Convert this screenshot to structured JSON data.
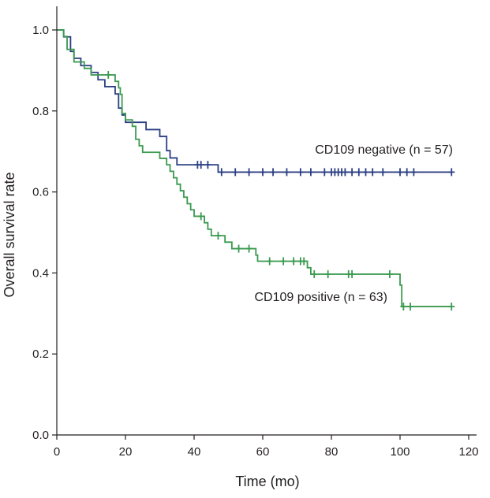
{
  "chart_data": {
    "type": "line",
    "title": "",
    "xlabel": "Time (mo)",
    "ylabel": "Overall survival rate",
    "xlim": [
      0,
      120
    ],
    "ylim": [
      0.0,
      1.0
    ],
    "x_ticks": [
      "0",
      "20",
      "40",
      "60",
      "80",
      "100",
      "120"
    ],
    "y_ticks": [
      "0.0",
      "0.2",
      "0.4",
      "0.6",
      "0.8",
      "1.0"
    ],
    "grid": false,
    "series": [
      {
        "name": "CD109 negative",
        "label": "CD109 negative (n = 57)",
        "n": 57,
        "color": "#2b3f83",
        "steps": [
          [
            0,
            1.0
          ],
          [
            2,
            0.983
          ],
          [
            4,
            0.947
          ],
          [
            5,
            0.93
          ],
          [
            7,
            0.912
          ],
          [
            10,
            0.895
          ],
          [
            12,
            0.877
          ],
          [
            14,
            0.86
          ],
          [
            17,
            0.842
          ],
          [
            18,
            0.807
          ],
          [
            19,
            0.79
          ],
          [
            20,
            0.772
          ],
          [
            26,
            0.754
          ],
          [
            30,
            0.737
          ],
          [
            32,
            0.702
          ],
          [
            33,
            0.684
          ],
          [
            35,
            0.667
          ],
          [
            47,
            0.649
          ],
          [
            115,
            0.649
          ]
        ],
        "censored": [
          [
            41,
            0.667
          ],
          [
            42,
            0.667
          ],
          [
            44,
            0.667
          ],
          [
            48,
            0.649
          ],
          [
            52,
            0.649
          ],
          [
            56,
            0.649
          ],
          [
            60,
            0.649
          ],
          [
            63,
            0.649
          ],
          [
            67,
            0.649
          ],
          [
            71,
            0.649
          ],
          [
            74,
            0.649
          ],
          [
            78,
            0.649
          ],
          [
            80,
            0.649
          ],
          [
            81,
            0.649
          ],
          [
            82,
            0.649
          ],
          [
            83,
            0.649
          ],
          [
            84,
            0.649
          ],
          [
            86,
            0.649
          ],
          [
            88,
            0.649
          ],
          [
            90,
            0.649
          ],
          [
            92,
            0.649
          ],
          [
            95,
            0.649
          ],
          [
            100,
            0.649
          ],
          [
            102,
            0.649
          ],
          [
            104,
            0.649
          ],
          [
            115,
            0.649
          ]
        ]
      },
      {
        "name": "CD109 positive",
        "label": "CD109 positive (n = 63)",
        "n": 63,
        "color": "#3a9a4f",
        "steps": [
          [
            0,
            1.0
          ],
          [
            2,
            0.984
          ],
          [
            3,
            0.952
          ],
          [
            5,
            0.921
          ],
          [
            8,
            0.905
          ],
          [
            10,
            0.889
          ],
          [
            17,
            0.873
          ],
          [
            18,
            0.857
          ],
          [
            18.5,
            0.841
          ],
          [
            19,
            0.794
          ],
          [
            20,
            0.778
          ],
          [
            22,
            0.762
          ],
          [
            23,
            0.73
          ],
          [
            24,
            0.714
          ],
          [
            25,
            0.698
          ],
          [
            30,
            0.683
          ],
          [
            32,
            0.667
          ],
          [
            33,
            0.651
          ],
          [
            34,
            0.635
          ],
          [
            35,
            0.619
          ],
          [
            36,
            0.603
          ],
          [
            37,
            0.587
          ],
          [
            38,
            0.571
          ],
          [
            39,
            0.556
          ],
          [
            40,
            0.54
          ],
          [
            43,
            0.524
          ],
          [
            44,
            0.508
          ],
          [
            45,
            0.492
          ],
          [
            49,
            0.476
          ],
          [
            51,
            0.46
          ],
          [
            58,
            0.444
          ],
          [
            58.5,
            0.429
          ],
          [
            73,
            0.413
          ],
          [
            74,
            0.397
          ],
          [
            100,
            0.37
          ],
          [
            100.5,
            0.317
          ],
          [
            115,
            0.317
          ]
        ],
        "censored": [
          [
            15,
            0.889
          ],
          [
            42,
            0.54
          ],
          [
            47,
            0.492
          ],
          [
            53,
            0.46
          ],
          [
            56,
            0.46
          ],
          [
            62,
            0.429
          ],
          [
            66,
            0.429
          ],
          [
            69,
            0.429
          ],
          [
            71,
            0.429
          ],
          [
            72,
            0.429
          ],
          [
            75,
            0.397
          ],
          [
            79,
            0.397
          ],
          [
            85,
            0.397
          ],
          [
            86,
            0.397
          ],
          [
            97,
            0.397
          ],
          [
            101,
            0.317
          ],
          [
            103,
            0.317
          ],
          [
            115,
            0.317
          ]
        ]
      }
    ]
  }
}
